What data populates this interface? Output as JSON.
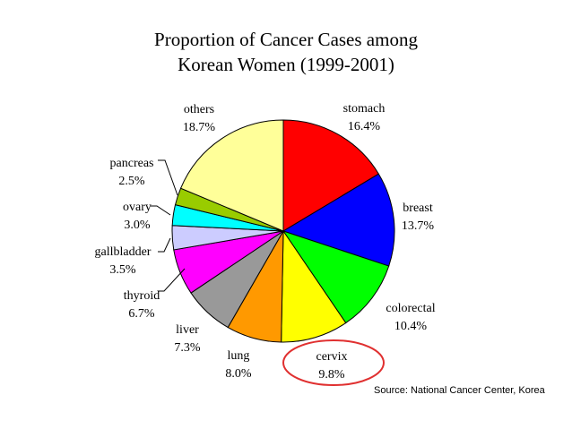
{
  "chart_data": {
    "type": "pie",
    "title_line1": "Proportion of Cancer Cases among",
    "title_line2": "Korean Women (1999-2001)",
    "slices": [
      {
        "label": "stomach",
        "value": 16.4,
        "value_text": "16.4%",
        "color": "#ff0000"
      },
      {
        "label": "breast",
        "value": 13.7,
        "value_text": "13.7%",
        "color": "#0000ff"
      },
      {
        "label": "colorectal",
        "value": 10.4,
        "value_text": "10.4%",
        "color": "#00ff00"
      },
      {
        "label": "cervix",
        "value": 9.8,
        "value_text": "9.8%",
        "color": "#ffff00",
        "highlighted": true
      },
      {
        "label": "lung",
        "value": 8.0,
        "value_text": "8.0%",
        "color": "#ff9900"
      },
      {
        "label": "liver",
        "value": 7.3,
        "value_text": "7.3%",
        "color": "#999999"
      },
      {
        "label": "thyroid",
        "value": 6.7,
        "value_text": "6.7%",
        "color": "#ff00ff"
      },
      {
        "label": "gallbladder",
        "value": 3.5,
        "value_text": "3.5%",
        "color": "#ccccff"
      },
      {
        "label": "ovary",
        "value": 3.0,
        "value_text": "3.0%",
        "color": "#00ffff"
      },
      {
        "label": "pancreas",
        "value": 2.5,
        "value_text": "2.5%",
        "color": "#99cc00"
      },
      {
        "label": "others",
        "value": 18.7,
        "value_text": "18.7%",
        "color": "#ffff99"
      }
    ],
    "highlight_color": "#e03030",
    "source": "Source:  National Cancer Center, Korea"
  }
}
